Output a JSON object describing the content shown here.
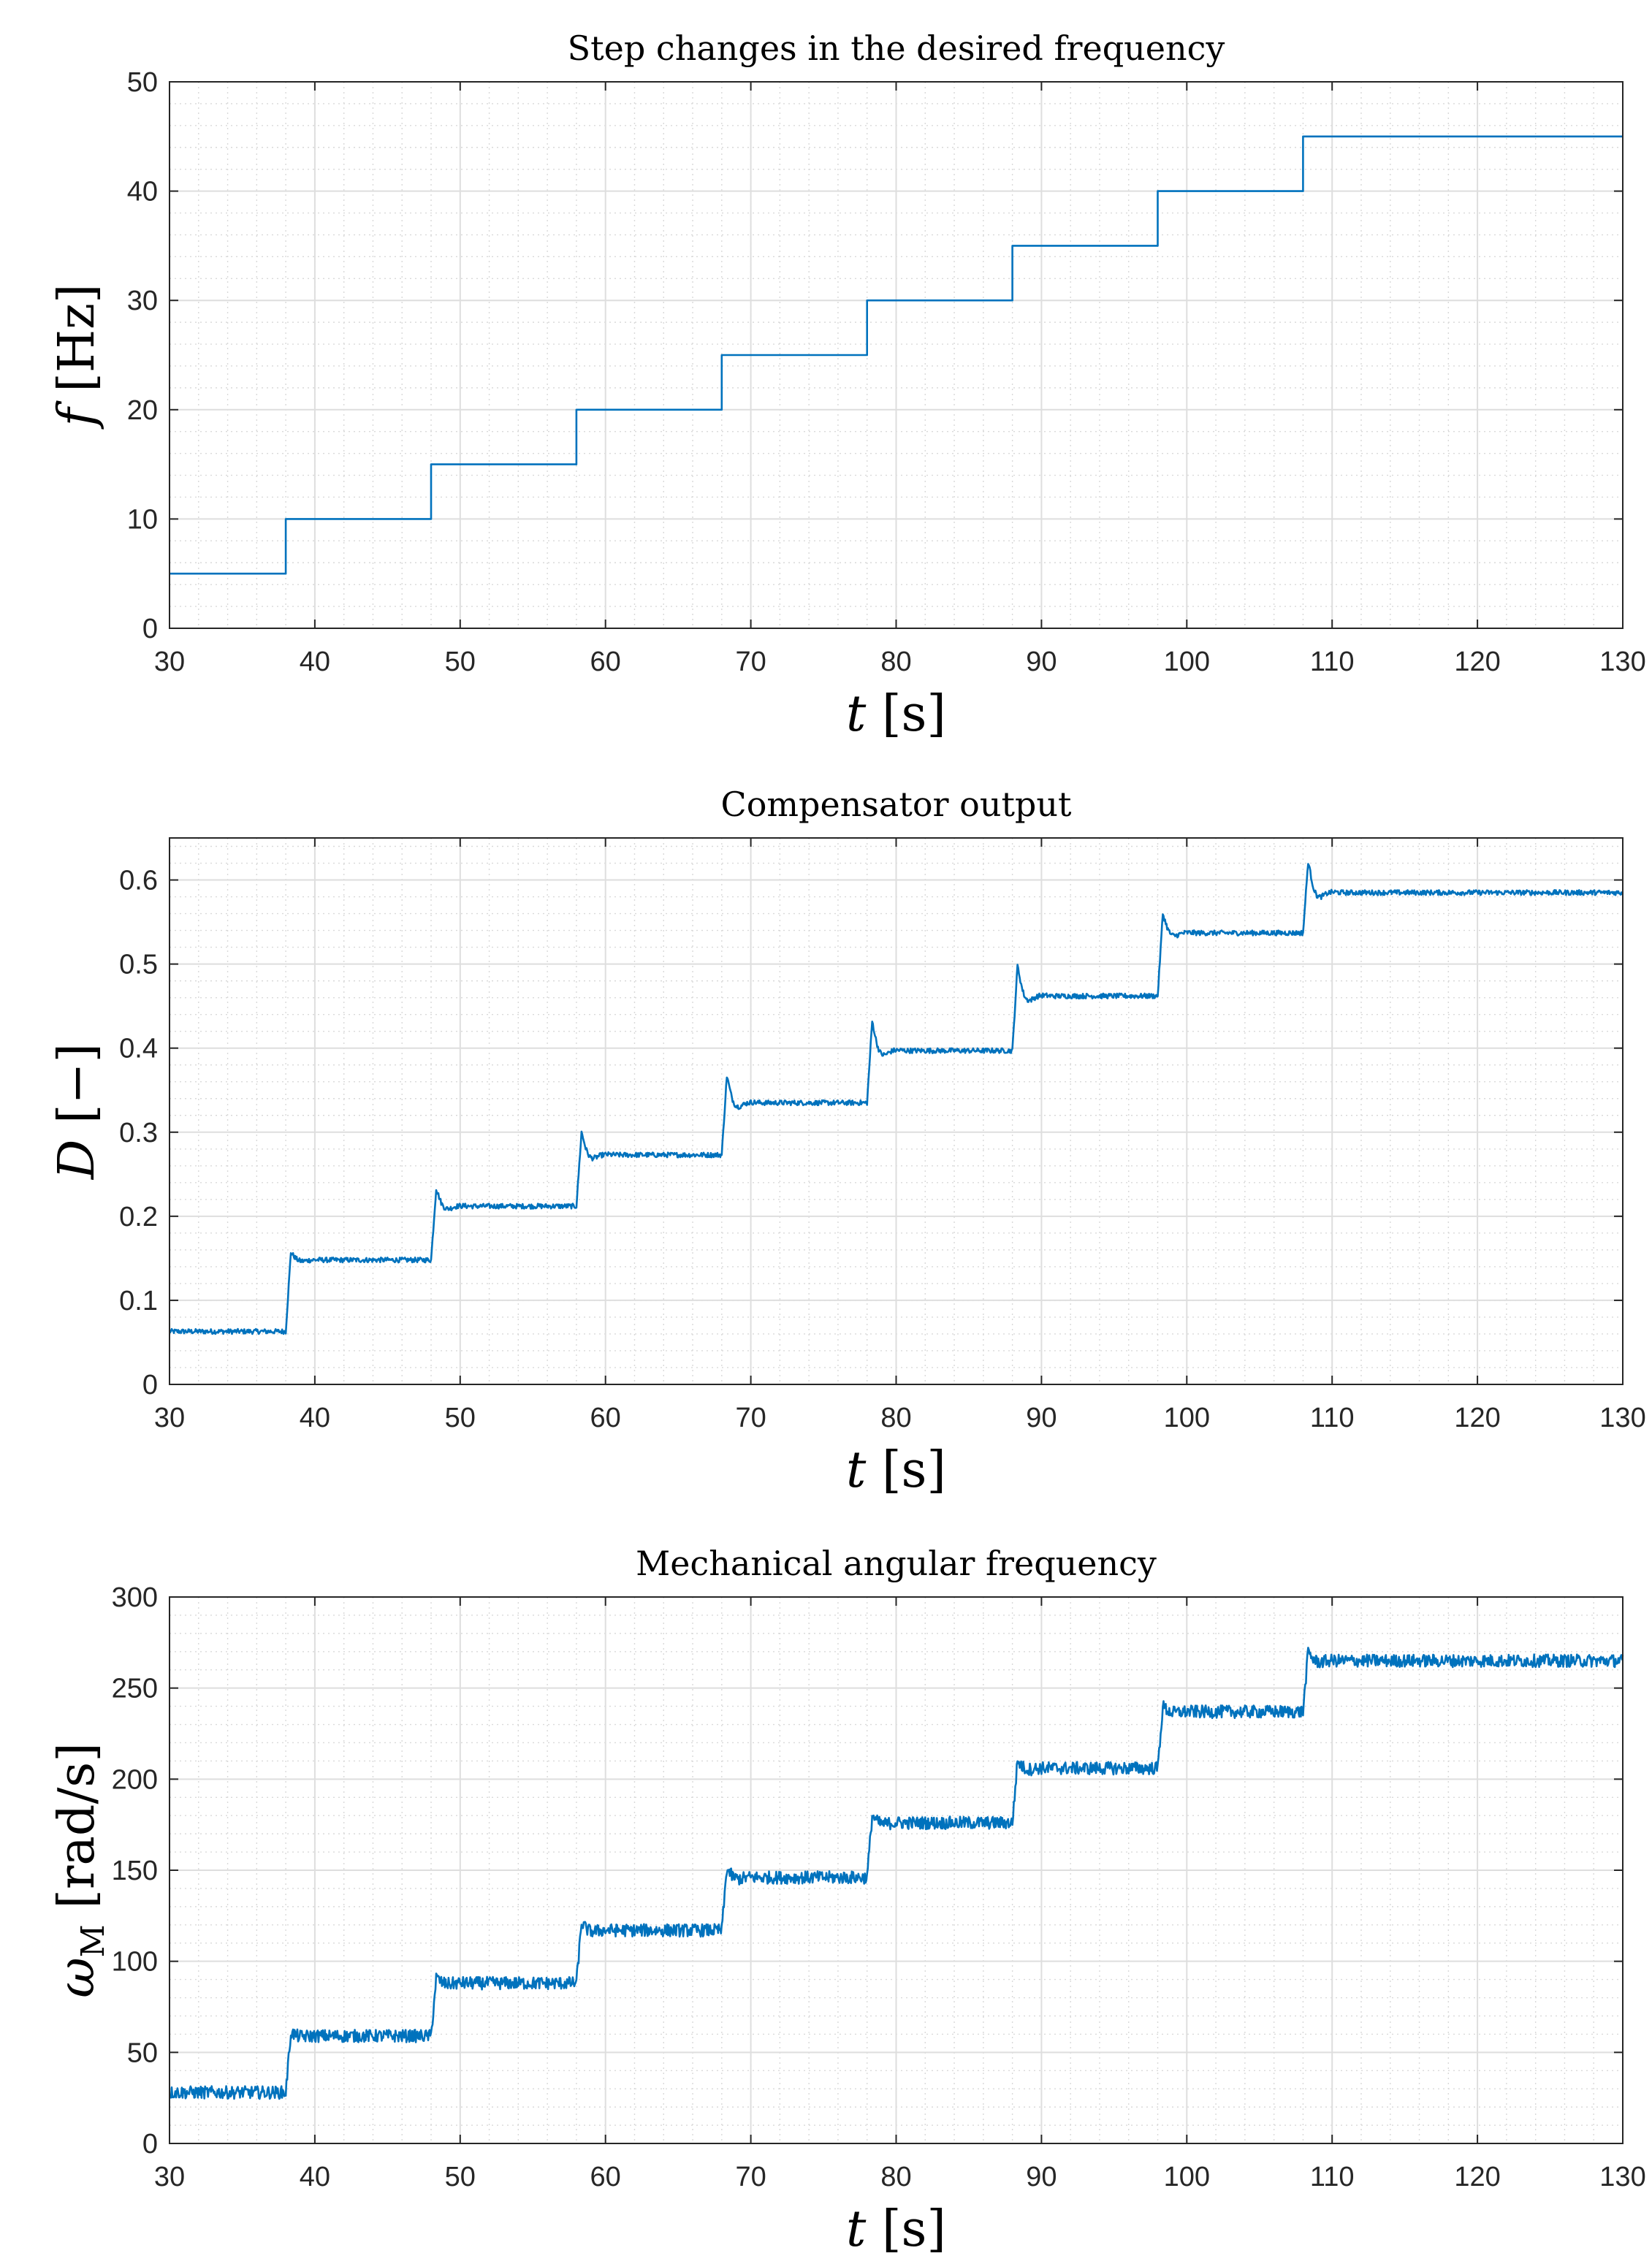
{
  "chart_data": [
    {
      "type": "line",
      "title": "Step changes in the desired frequency",
      "xlabel": "t [s]",
      "ylabel_symbol": "f",
      "ylabel_unit": "[Hz]",
      "xlim": [
        30,
        130
      ],
      "ylim": [
        0,
        50
      ],
      "xticks": [
        30,
        40,
        50,
        60,
        70,
        80,
        90,
        100,
        110,
        120,
        130
      ],
      "yticks": [
        0,
        10,
        20,
        30,
        40,
        50
      ],
      "grid": true,
      "minor_grid": true,
      "line_color": "#0072BD",
      "series": [
        {
          "name": "f",
          "shape": "step",
          "x": [
            30,
            38,
            48,
            58,
            68,
            78,
            88,
            98,
            108,
            130
          ],
          "values": [
            5,
            10,
            15,
            20,
            25,
            30,
            35,
            40,
            45,
            45
          ]
        }
      ]
    },
    {
      "type": "line",
      "title": "Compensator output",
      "xlabel": "t [s]",
      "ylabel_symbol": "D",
      "ylabel_unit": "[−]",
      "xlim": [
        30,
        130
      ],
      "ylim": [
        0,
        0.65
      ],
      "xticks": [
        30,
        40,
        50,
        60,
        70,
        80,
        90,
        100,
        110,
        120,
        130
      ],
      "yticks": [
        0,
        0.1,
        0.2,
        0.3,
        0.4,
        0.5,
        0.6
      ],
      "grid": true,
      "minor_grid": true,
      "line_color": "#0072BD",
      "series": [
        {
          "name": "D",
          "shape": "step_response",
          "step_times": [
            30,
            38,
            48,
            58,
            68,
            78,
            88,
            98,
            108
          ],
          "levels": [
            0.063,
            0.148,
            0.212,
            0.273,
            0.335,
            0.397,
            0.462,
            0.537,
            0.585
          ],
          "peaks": [
            0.063,
            0.157,
            0.233,
            0.3,
            0.367,
            0.432,
            0.498,
            0.56,
            0.622
          ],
          "noise": 0.003
        }
      ]
    },
    {
      "type": "line",
      "title": "Mechanical angular frequency",
      "xlabel": "t [s]",
      "ylabel_symbol": "ω",
      "ylabel_subscript": "M",
      "ylabel_unit": "[rad/s]",
      "xlim": [
        30,
        130
      ],
      "ylim": [
        0,
        300
      ],
      "xticks": [
        30,
        40,
        50,
        60,
        70,
        80,
        90,
        100,
        110,
        120,
        130
      ],
      "yticks": [
        0,
        50,
        100,
        150,
        200,
        250,
        300
      ],
      "grid": true,
      "minor_grid": true,
      "line_color": "#0072BD",
      "series": [
        {
          "name": "omega_M",
          "shape": "step_response",
          "step_times": [
            30,
            38,
            48,
            58,
            68,
            78,
            88,
            98,
            108
          ],
          "levels": [
            28,
            59,
            88,
            117,
            146,
            176,
            206,
            237,
            265
          ],
          "peaks": [
            28,
            61,
            91,
            121,
            151,
            180,
            210,
            240,
            270
          ],
          "noise": 3.5
        }
      ]
    }
  ]
}
